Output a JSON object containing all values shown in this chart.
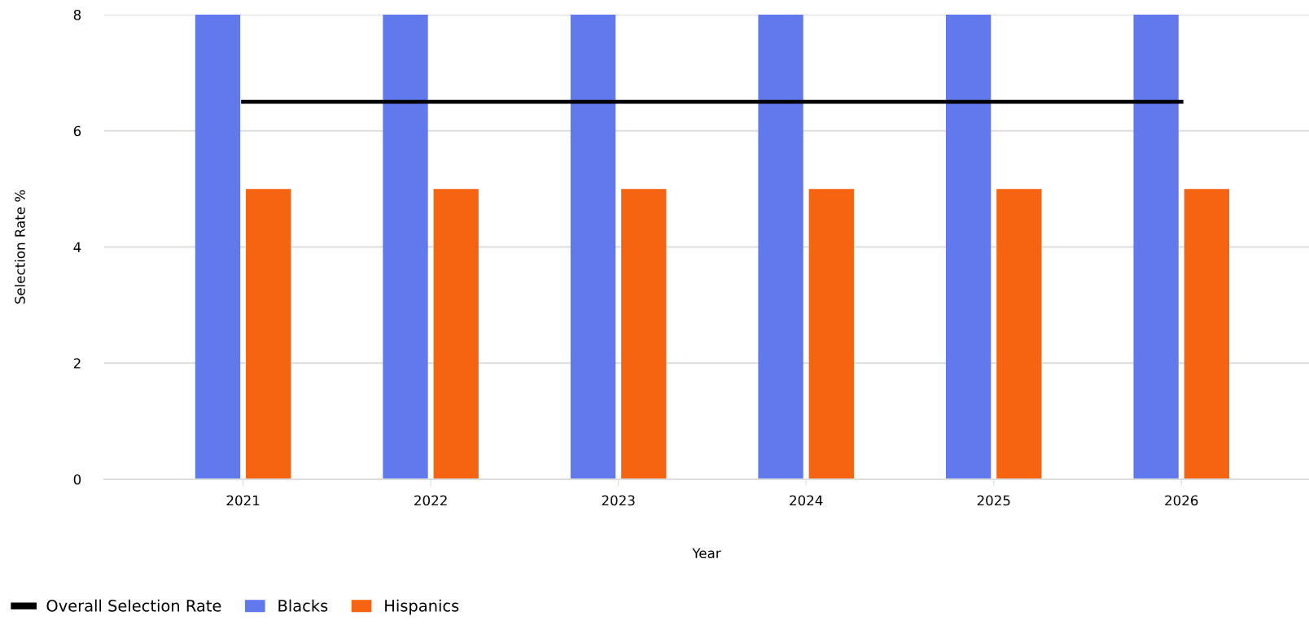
{
  "chart_data": {
    "type": "bar",
    "xlabel": "Year",
    "ylabel": "Selection Rate %",
    "categories": [
      "2021",
      "2022",
      "2023",
      "2024",
      "2025",
      "2026"
    ],
    "series": [
      {
        "name": "Overall Selection Rate",
        "type": "line",
        "color": "#000000",
        "values": [
          6.5,
          6.5,
          6.5,
          6.5,
          6.5,
          6.5
        ]
      },
      {
        "name": "Blacks",
        "color": "#6279ee",
        "values": [
          8,
          8,
          8,
          8,
          8,
          8
        ]
      },
      {
        "name": "Hispanics",
        "color": "#f76411",
        "values": [
          5,
          5,
          5,
          5,
          5,
          5
        ]
      }
    ],
    "ylim": [
      0,
      8
    ],
    "yticks": [
      0,
      2,
      4,
      6,
      8
    ],
    "grid": "y",
    "legend": "bottom left"
  }
}
